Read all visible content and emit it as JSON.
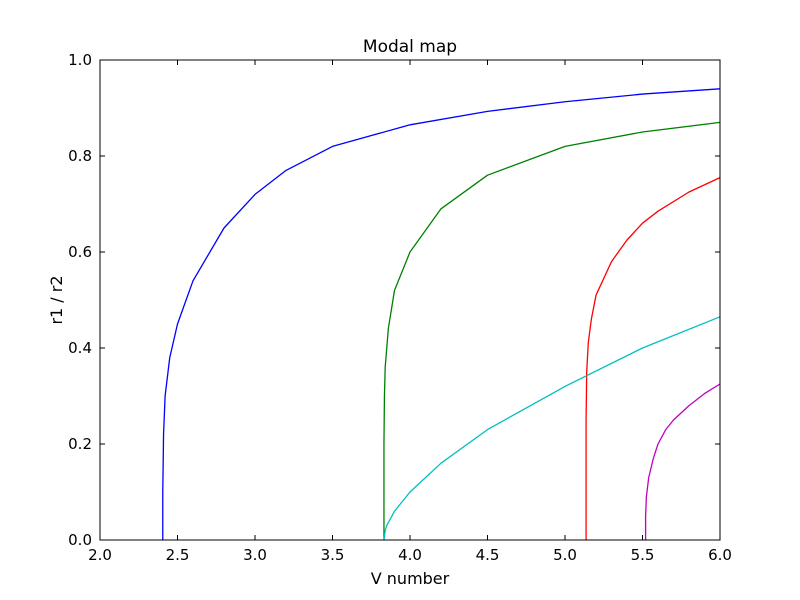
{
  "chart_data": {
    "type": "line",
    "title": "Modal map",
    "xlabel": "V number",
    "ylabel": "r1 / r2",
    "xlim": [
      2.0,
      6.0
    ],
    "ylim": [
      0.0,
      1.0
    ],
    "xticks": [
      2.0,
      2.5,
      3.0,
      3.5,
      4.0,
      4.5,
      5.0,
      5.5,
      6.0
    ],
    "yticks": [
      0.0,
      0.2,
      0.4,
      0.6,
      0.8,
      1.0
    ],
    "xtick_labels": [
      "2.0",
      "2.5",
      "3.0",
      "3.5",
      "4.0",
      "4.5",
      "5.0",
      "5.5",
      "6.0"
    ],
    "ytick_labels": [
      "0.0",
      "0.2",
      "0.4",
      "0.6",
      "0.8",
      "1.0"
    ],
    "grid": false,
    "legend": "none",
    "series": [
      {
        "color": "#0000ff",
        "x": [
          2.405,
          2.405,
          2.41,
          2.42,
          2.45,
          2.5,
          2.6,
          2.8,
          3.0,
          3.2,
          3.5,
          4.0,
          4.5,
          5.0,
          5.5,
          6.0
        ],
        "y": [
          0.0,
          0.1,
          0.22,
          0.3,
          0.38,
          0.45,
          0.54,
          0.65,
          0.72,
          0.77,
          0.82,
          0.865,
          0.893,
          0.913,
          0.929,
          0.94
        ]
      },
      {
        "color": "#008000",
        "x": [
          3.832,
          3.832,
          3.835,
          3.84,
          3.86,
          3.9,
          4.0,
          4.2,
          4.5,
          5.0,
          5.5,
          6.0
        ],
        "y": [
          0.0,
          0.2,
          0.3,
          0.36,
          0.44,
          0.52,
          0.6,
          0.69,
          0.76,
          0.82,
          0.85,
          0.87
        ]
      },
      {
        "color": "#ff0000",
        "x": [
          5.136,
          5.136,
          5.14,
          5.15,
          5.17,
          5.2,
          5.3,
          5.4,
          5.5,
          5.6,
          5.8,
          6.0
        ],
        "y": [
          0.0,
          0.25,
          0.35,
          0.41,
          0.46,
          0.51,
          0.58,
          0.625,
          0.66,
          0.685,
          0.725,
          0.755
        ]
      },
      {
        "color": "#00bfbf",
        "x": [
          3.832,
          3.84,
          3.85,
          3.9,
          4.0,
          4.2,
          4.5,
          5.0,
          5.5,
          6.0
        ],
        "y": [
          0.0,
          0.02,
          0.03,
          0.06,
          0.1,
          0.16,
          0.23,
          0.32,
          0.4,
          0.465
        ]
      },
      {
        "color": "#bf00bf",
        "x": [
          5.52,
          5.52,
          5.525,
          5.54,
          5.57,
          5.6,
          5.65,
          5.7,
          5.8,
          5.9,
          6.0
        ],
        "y": [
          0.0,
          0.05,
          0.09,
          0.13,
          0.17,
          0.2,
          0.23,
          0.25,
          0.28,
          0.305,
          0.325
        ]
      }
    ]
  }
}
